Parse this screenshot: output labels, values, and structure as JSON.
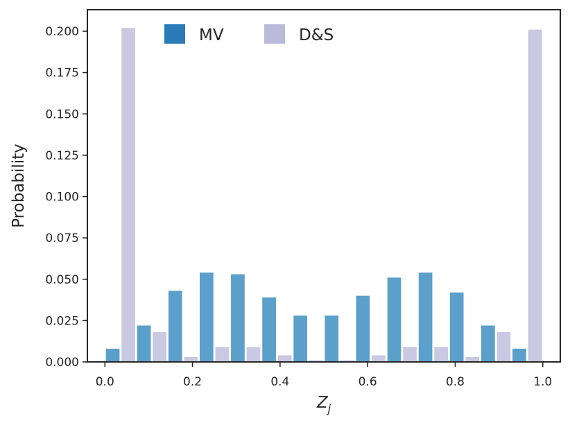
{
  "chart_data": {
    "type": "bar",
    "title": "",
    "xlabel": "Z_j",
    "ylabel": "Probability",
    "xlim": [
      -0.04,
      1.04
    ],
    "ylim": [
      0,
      0.213
    ],
    "xticks": [
      0.0,
      0.2,
      0.4,
      0.6,
      0.8,
      1.0
    ],
    "xtick_labels": [
      "0.0",
      "0.2",
      "0.4",
      "0.6",
      "0.8",
      "1.0"
    ],
    "yticks": [
      0.0,
      0.025,
      0.05,
      0.075,
      0.1,
      0.125,
      0.15,
      0.175,
      0.2
    ],
    "ytick_labels": [
      "0.000",
      "0.025",
      "0.050",
      "0.075",
      "0.100",
      "0.125",
      "0.150",
      "0.175",
      "0.200"
    ],
    "grid": false,
    "legend_position": "top-center",
    "bin_width": 0.0714,
    "bin_centers": [
      0.0357,
      0.1071,
      0.1786,
      0.25,
      0.3214,
      0.3929,
      0.4643,
      0.5357,
      0.6071,
      0.6786,
      0.75,
      0.8214,
      0.8929,
      0.9643
    ],
    "series": [
      {
        "name": "MV",
        "color": "#5b9fcb",
        "legend_color": "#2b7bba",
        "values": [
          0.008,
          0.022,
          0.043,
          0.054,
          0.053,
          0.039,
          0.028,
          0.028,
          0.04,
          0.051,
          0.054,
          0.042,
          0.022,
          0.008
        ]
      },
      {
        "name": "D&S",
        "color": "#c9c9e3",
        "legend_color": "#babadd",
        "values": [
          0.202,
          0.018,
          0.003,
          0.009,
          0.009,
          0.004,
          0.001,
          0.001,
          0.004,
          0.009,
          0.009,
          0.003,
          0.018,
          0.201
        ]
      }
    ]
  }
}
